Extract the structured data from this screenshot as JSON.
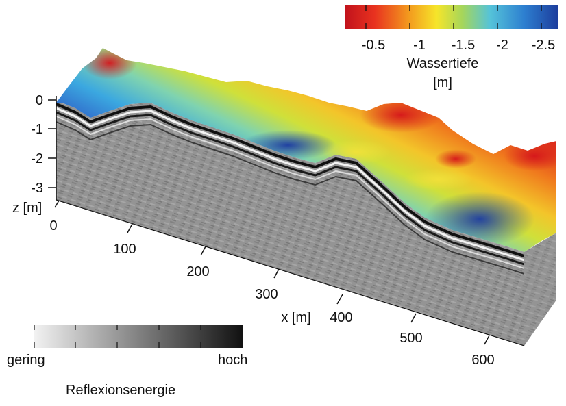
{
  "depth_colorbar": {
    "ticks": [
      "-0.5",
      "-1",
      "-1.5",
      "-2",
      "-2.5"
    ],
    "label_line1": "Wassertiefe",
    "label_line2": "[m]",
    "colors": [
      "#c1121c",
      "#e8321f",
      "#f39a1e",
      "#f6e52a",
      "#a6d65a",
      "#55c3d9",
      "#2d7fd0",
      "#1c3c9c"
    ]
  },
  "energy_colorbar": {
    "low_label": "gering",
    "high_label": "hoch",
    "title": "Reflexionsenergie",
    "colors": [
      "#f2f2f2",
      "#111111"
    ]
  },
  "z_axis": {
    "ticks": [
      "0",
      "-1",
      "-2",
      "-3"
    ],
    "label": "z [m]"
  },
  "x_axis": {
    "ticks": [
      "0",
      "100",
      "200",
      "300",
      "400",
      "500",
      "600"
    ],
    "label": "x [m]"
  }
}
